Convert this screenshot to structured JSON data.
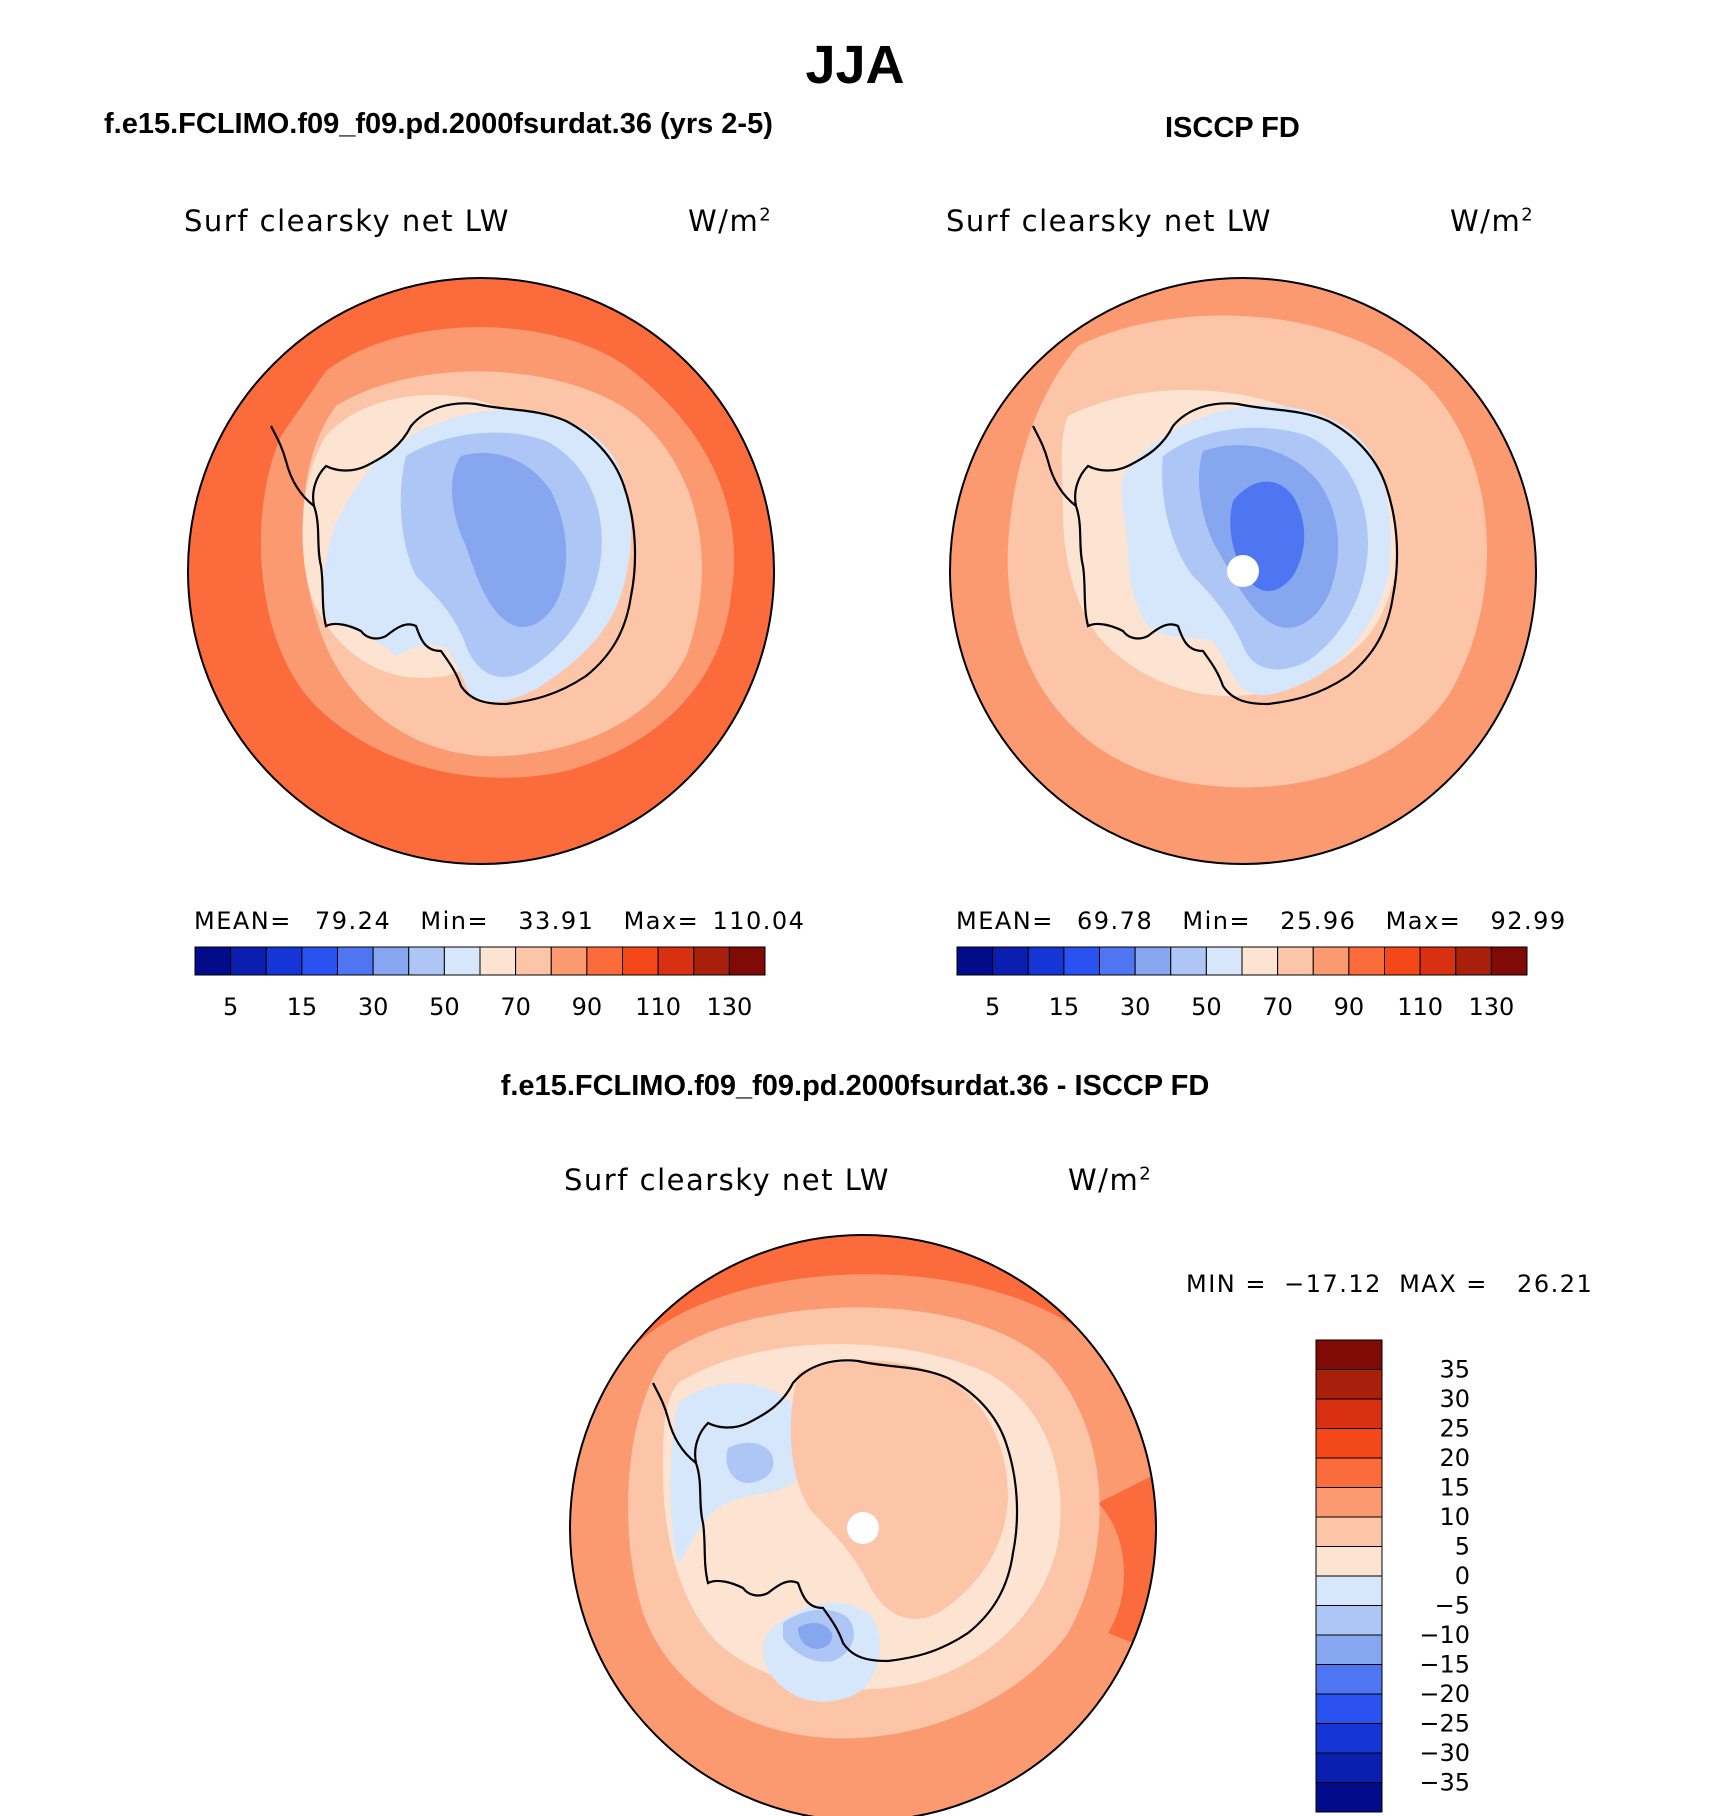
{
  "main_title": "JJA",
  "colors": {
    "ocean_warm": "#fb6b3c",
    "ocean_mid": "#fb9a70",
    "ocean_light": "#fcc5a8",
    "land_cool": "#a9c4f4",
    "land_cooler": "#86a7f0",
    "neutral_light": "#fde4d2",
    "pale_blue": "#d6e6fb"
  },
  "panels": [
    {
      "case_title": "f.e15.FCLIMO.f09_f09.pd.2000fsurdat.36 (yrs 2-5)",
      "var_label": "Surf clearsky net LW",
      "units_base": "W/m",
      "units_sup": "2",
      "stats": {
        "mean_label": "MEAN=",
        "mean": "79.24",
        "min_label": "Min=",
        "min": "33.91",
        "max_label": "Max=",
        "max": "110.04"
      }
    },
    {
      "case_title": "ISCCP FD",
      "var_label": "Surf clearsky net LW",
      "units_base": "W/m",
      "units_sup": "2",
      "stats": {
        "mean_label": "MEAN=",
        "mean": "69.78",
        "min_label": "Min=",
        "min": "25.96",
        "max_label": "Max=",
        "max": "92.99"
      }
    }
  ],
  "colorbar_top": {
    "colors": [
      "#020b8a",
      "#0a1fb0",
      "#1535d6",
      "#2a52f0",
      "#4f76f2",
      "#86a7f0",
      "#adc6f6",
      "#d6e6fb",
      "#fde4d2",
      "#fcc5a8",
      "#fb9a70",
      "#fb6b3c",
      "#f4471a",
      "#d93012",
      "#a8200c",
      "#7f0a06"
    ],
    "tick_labels": [
      "5",
      "15",
      "30",
      "50",
      "70",
      "90",
      "110",
      "130"
    ]
  },
  "diff_panel": {
    "title": "f.e15.FCLIMO.f09_f09.pd.2000fsurdat.36 - ISCCP FD",
    "var_label": "Surf clearsky net LW",
    "units_base": "W/m",
    "units_sup": "2",
    "minmax": {
      "min_label": "MIN =",
      "min": "−17.12",
      "max_label": "MAX =",
      "max": "26.21"
    }
  },
  "colorbar_diff": {
    "colors_top_to_bottom": [
      "#7f0a06",
      "#a8200c",
      "#d93012",
      "#f4471a",
      "#fb6b3c",
      "#fb9a70",
      "#fcc5a8",
      "#fde4d2",
      "#d6e6fb",
      "#adc6f6",
      "#86a7f0",
      "#4f76f2",
      "#2a52f0",
      "#1535d6",
      "#0a1fb0",
      "#020b8a"
    ],
    "tick_labels": [
      "35",
      "30",
      "25",
      "20",
      "15",
      "10",
      "5",
      "0",
      "−5",
      "−10",
      "−15",
      "−20",
      "−25",
      "−30",
      "−35"
    ]
  }
}
